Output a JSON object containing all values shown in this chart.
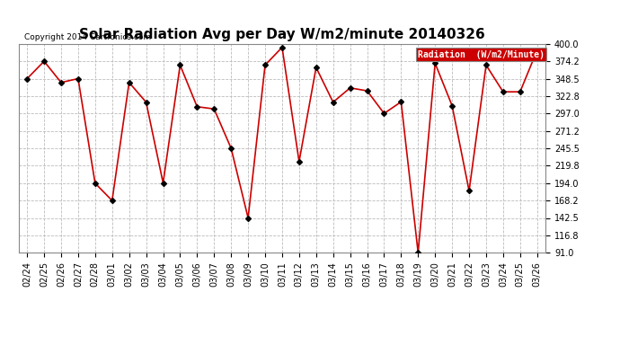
{
  "title": "Solar Radiation Avg per Day W/m2/minute 20140326",
  "copyright": "Copyright 2014 Cartronics.com",
  "legend_label": "Radiation  (W/m2/Minute)",
  "dates": [
    "02/24",
    "02/25",
    "02/26",
    "02/27",
    "02/28",
    "03/01",
    "03/02",
    "03/03",
    "03/04",
    "03/05",
    "03/06",
    "03/07",
    "03/08",
    "03/09",
    "03/10",
    "03/11",
    "03/12",
    "03/13",
    "03/14",
    "03/15",
    "03/16",
    "03/17",
    "03/18",
    "03/19",
    "03/20",
    "03/21",
    "03/22",
    "03/23",
    "03/24",
    "03/25",
    "03/26"
  ],
  "values": [
    348.5,
    374.2,
    342.8,
    348.5,
    193.8,
    168.2,
    342.8,
    313.7,
    194.2,
    368.5,
    307.0,
    303.7,
    245.5,
    142.5,
    368.5,
    394.8,
    225.8,
    365.0,
    313.7,
    334.8,
    330.5,
    297.0,
    314.2,
    91.0,
    371.2,
    308.5,
    182.5,
    368.5,
    329.0,
    329.0,
    390.5
  ],
  "line_color": "#cc0000",
  "marker_color": "#000000",
  "bg_color": "#ffffff",
  "grid_color": "#bbbbbb",
  "yticks": [
    91.0,
    116.8,
    142.5,
    168.2,
    194.0,
    219.8,
    245.5,
    271.2,
    297.0,
    322.8,
    348.5,
    374.2,
    400.0
  ],
  "ylim": [
    91.0,
    400.0
  ],
  "title_fontsize": 11,
  "legend_bg": "#cc0000",
  "legend_text_color": "#ffffff"
}
